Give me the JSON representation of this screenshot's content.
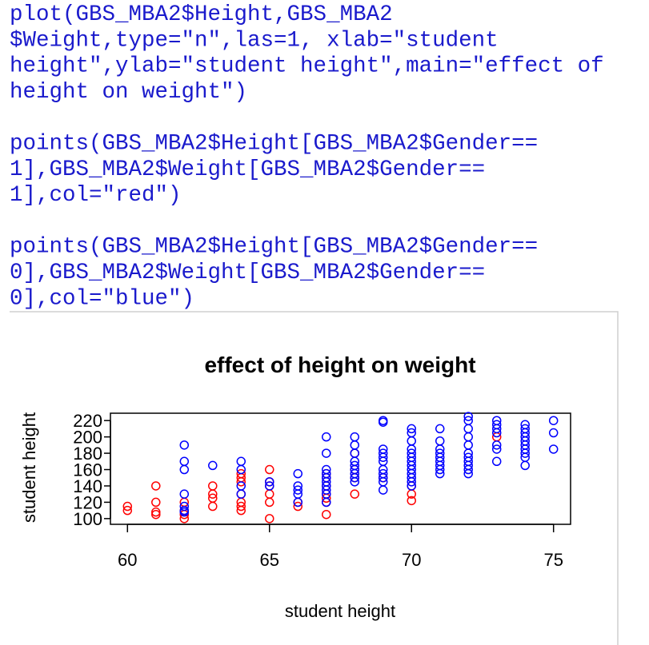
{
  "code": {
    "blocks": [
      {
        "lines": [
          "plot(GBS_MBA2$Height,GBS_MBA2",
          "$Weight,type=\"n\",las=1, xlab=\"student",
          "height\",ylab=\"student height\",main=\"effect of",
          "height on weight\")"
        ]
      },
      {
        "lines": [
          "points(GBS_MBA2$Height[GBS_MBA2$Gender==",
          "1],GBS_MBA2$Weight[GBS_MBA2$Gender==",
          "1],col=\"red\")"
        ]
      },
      {
        "lines": [
          "points(GBS_MBA2$Height[GBS_MBA2$Gender==",
          "0],GBS_MBA2$Weight[GBS_MBA2$Gender==",
          "0],col=\"blue\")"
        ]
      }
    ]
  },
  "chart_data": {
    "type": "scatter",
    "title": "effect of height on weight",
    "x_label": "student height",
    "y_label": "student height",
    "xlim": [
      59.4,
      75.6
    ],
    "ylim": [
      93,
      229
    ],
    "xticks": [
      60,
      65,
      70,
      75
    ],
    "yticks": [
      100,
      120,
      140,
      160,
      180,
      200,
      220
    ],
    "series": [
      {
        "color": "#ff0000",
        "x": [
          60,
          60,
          61,
          61,
          61,
          61,
          62,
          62,
          62,
          62,
          63,
          63,
          63,
          63,
          64,
          64,
          64,
          64,
          64,
          64,
          64,
          65,
          65,
          65,
          65,
          65,
          65,
          66,
          66,
          67,
          67,
          67,
          67,
          67,
          67,
          67,
          68,
          68,
          68,
          68,
          69,
          70,
          70,
          70,
          73
        ],
        "values": [
          115,
          110,
          140,
          120,
          108,
          105,
          120,
          110,
          105,
          100,
          140,
          130,
          125,
          115,
          155,
          150,
          145,
          130,
          120,
          115,
          110,
          160,
          145,
          140,
          130,
          120,
          100,
          120,
          115,
          155,
          150,
          140,
          130,
          125,
          120,
          105,
          180,
          160,
          150,
          130,
          150,
          140,
          130,
          122,
          200
        ]
      },
      {
        "color": "#0000ff",
        "x": [
          62,
          62,
          62,
          62,
          62,
          62,
          62,
          63,
          64,
          64,
          64,
          64,
          65,
          65,
          66,
          66,
          66,
          66,
          66,
          67,
          67,
          67,
          67,
          67,
          67,
          67,
          67,
          67,
          67,
          68,
          68,
          68,
          68,
          68,
          68,
          68,
          68,
          68,
          69,
          69,
          69,
          69,
          69,
          69,
          69,
          69,
          69,
          69,
          69,
          70,
          70,
          70,
          70,
          70,
          70,
          70,
          70,
          70,
          70,
          70,
          70,
          70,
          71,
          71,
          71,
          71,
          71,
          71,
          71,
          71,
          71,
          72,
          72,
          72,
          72,
          72,
          72,
          72,
          72,
          72,
          72,
          72,
          73,
          73,
          73,
          73,
          73,
          73,
          73,
          74,
          74,
          74,
          74,
          74,
          74,
          74,
          74,
          74,
          74,
          75,
          75,
          75
        ],
        "values": [
          190,
          170,
          160,
          130,
          115,
          110,
          108,
          165,
          170,
          160,
          140,
          130,
          145,
          140,
          155,
          140,
          135,
          130,
          120,
          200,
          180,
          160,
          155,
          150,
          145,
          140,
          135,
          130,
          120,
          200,
          190,
          180,
          170,
          165,
          160,
          155,
          150,
          145,
          220,
          218,
          185,
          180,
          175,
          170,
          160,
          155,
          150,
          145,
          135,
          210,
          205,
          195,
          185,
          180,
          175,
          170,
          165,
          160,
          155,
          150,
          145,
          140,
          210,
          195,
          185,
          180,
          175,
          170,
          165,
          160,
          155,
          225,
          220,
          210,
          200,
          190,
          180,
          175,
          170,
          165,
          160,
          155,
          220,
          215,
          210,
          205,
          190,
          185,
          170,
          215,
          210,
          205,
          200,
          195,
          190,
          185,
          180,
          175,
          165,
          220,
          205,
          185
        ]
      }
    ]
  }
}
